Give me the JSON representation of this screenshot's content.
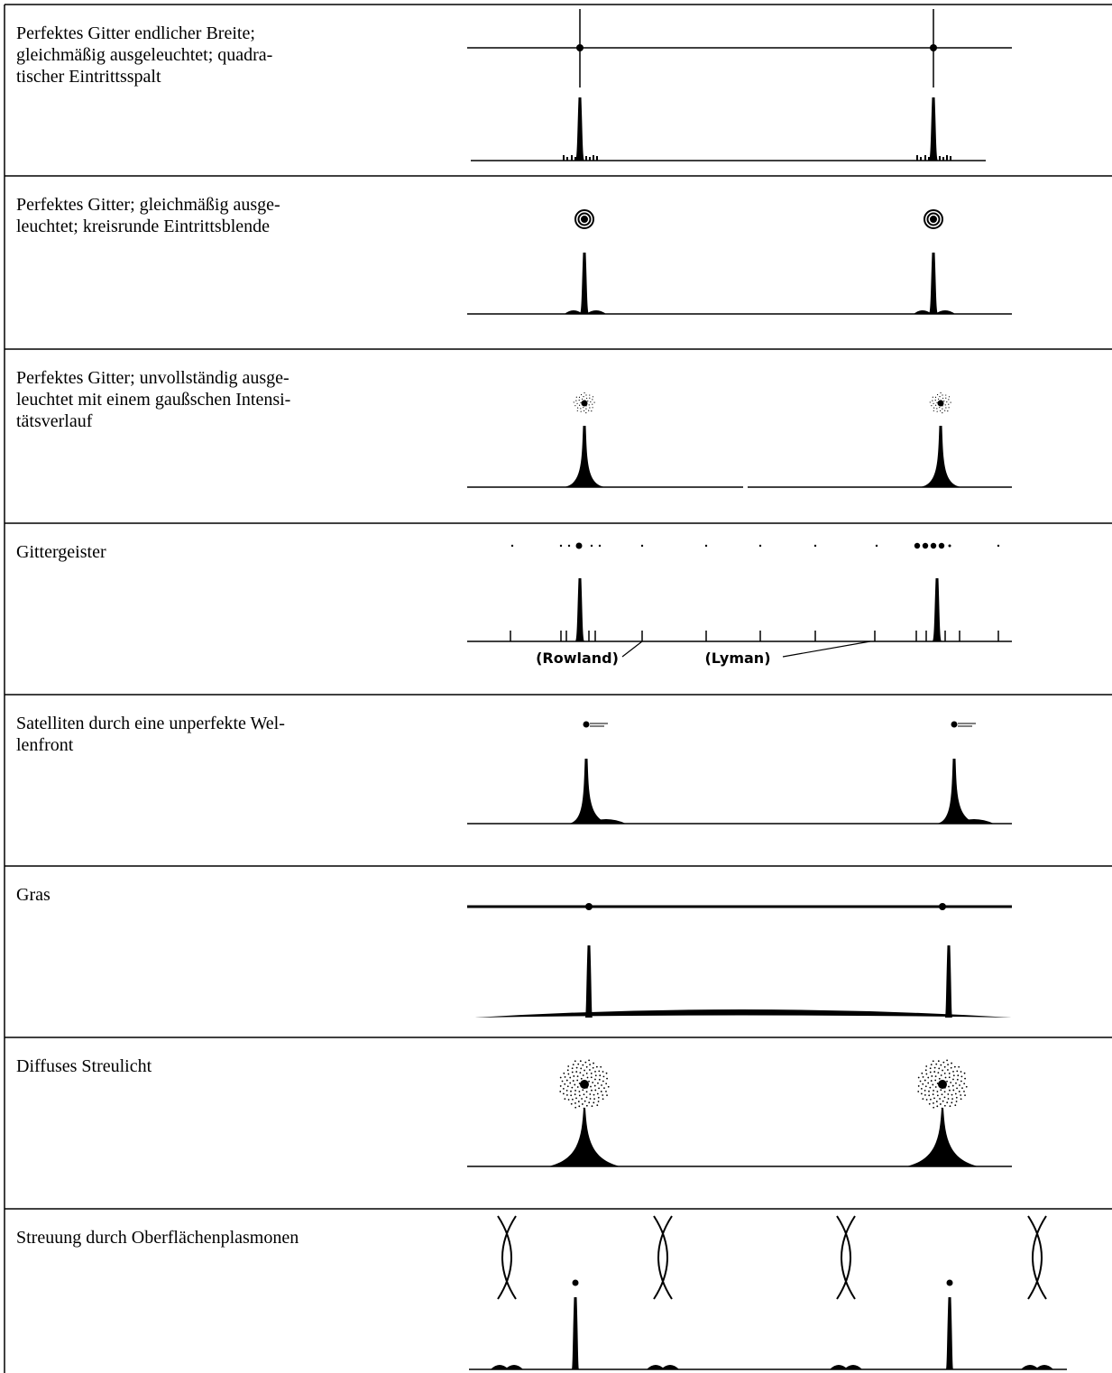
{
  "rows": [
    {
      "description": [
        "Perfektes Gitter endlicher Breite;",
        "gleichmäßig ausgeleuchtet; quadra-",
        "tischer Eintrittsspalt"
      ]
    },
    {
      "description": [
        "Perfektes Gitter; gleichmäßig ausge-",
        "leuchtet; kreisrunde Eintrittsblende"
      ]
    },
    {
      "description": [
        "Perfektes Gitter; unvollständig ausge-",
        "leuchtet mit einem gaußschen Intensi-",
        "tätsverlauf"
      ]
    },
    {
      "description": [
        "Gittergeister"
      ],
      "labels": [
        "(Rowland)",
        "(Lyman)"
      ]
    },
    {
      "description": [
        "Satelliten durch eine unperfekte Wel-",
        "lenfront"
      ]
    },
    {
      "description": [
        "Gras"
      ]
    },
    {
      "description": [
        "Diffuses Streulicht"
      ]
    },
    {
      "description": [
        "Streuung durch Oberflächenplasmonen"
      ]
    }
  ]
}
